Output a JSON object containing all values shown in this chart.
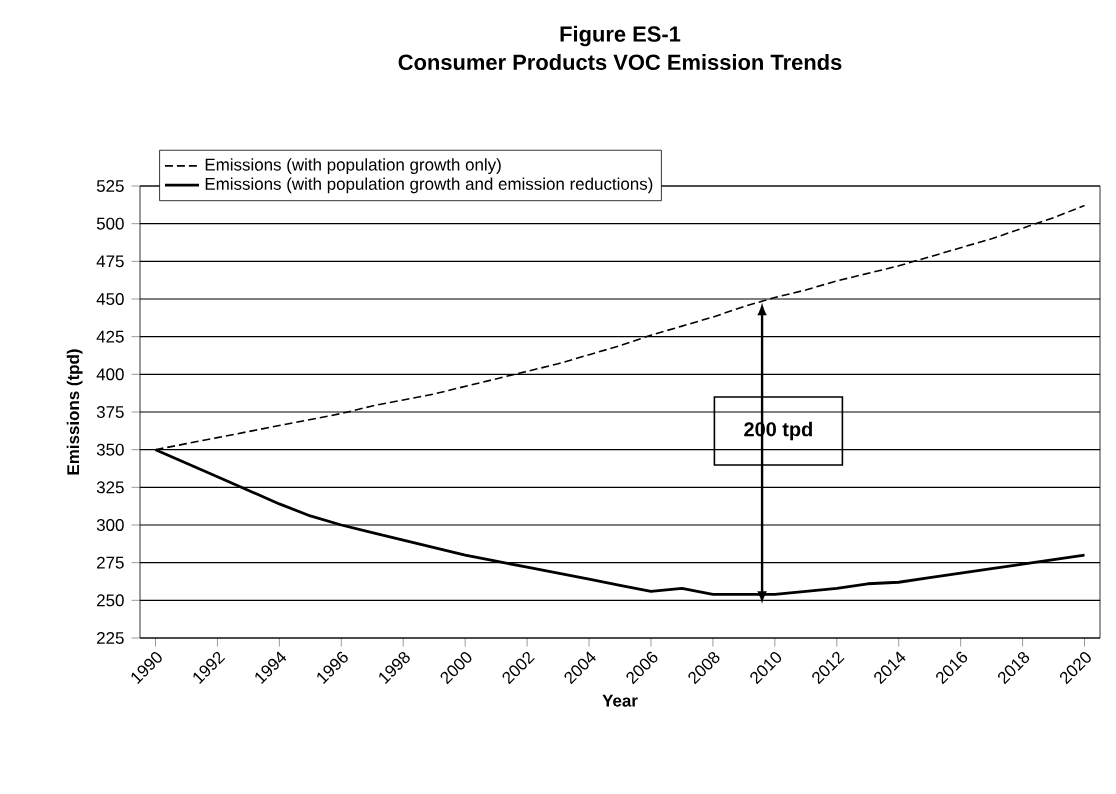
{
  "chart_data": {
    "type": "line",
    "title": "Figure ES-1",
    "subtitle": "Consumer Products VOC Emission Trends",
    "xlabel": "Year",
    "ylabel": "Emissions (tpd)",
    "categories": [
      "1990",
      null,
      "1992",
      null,
      "1994",
      null,
      "1996",
      null,
      "1998",
      null,
      "2000",
      null,
      "2002",
      null,
      "2004",
      null,
      "2006",
      null,
      "2008",
      null,
      "2010",
      null,
      "2012",
      null,
      "2014",
      null,
      "2016",
      null,
      "2018",
      null,
      "2020"
    ],
    "series": [
      {
        "name": "Emissions (with population growth only)",
        "color": "#000000",
        "line_style": "dashed",
        "values": [
          350,
          354,
          358,
          362,
          366,
          370,
          374,
          379,
          383,
          387,
          392,
          397,
          402,
          407,
          413,
          419,
          426,
          432,
          438,
          445,
          451,
          456,
          462,
          467,
          472,
          478,
          484,
          490,
          497,
          504,
          512
        ]
      },
      {
        "name": "Emissions (with population growth and emission reductions)",
        "color": "#000000",
        "line_style": "solid",
        "values": [
          350,
          341,
          332,
          323,
          314,
          306,
          300,
          295,
          290,
          285,
          280,
          276,
          272,
          268,
          264,
          260,
          256,
          258,
          254,
          254,
          254,
          256,
          258,
          261,
          262,
          265,
          268,
          271,
          274,
          277,
          280
        ]
      }
    ],
    "ylim": [
      225,
      525
    ],
    "yticks": [
      225,
      250,
      275,
      300,
      325,
      350,
      375,
      400,
      425,
      450,
      475,
      500,
      525
    ],
    "grid": "y",
    "legend": "top left",
    "marker": "none",
    "annotations": [
      "200 tpd"
    ]
  }
}
